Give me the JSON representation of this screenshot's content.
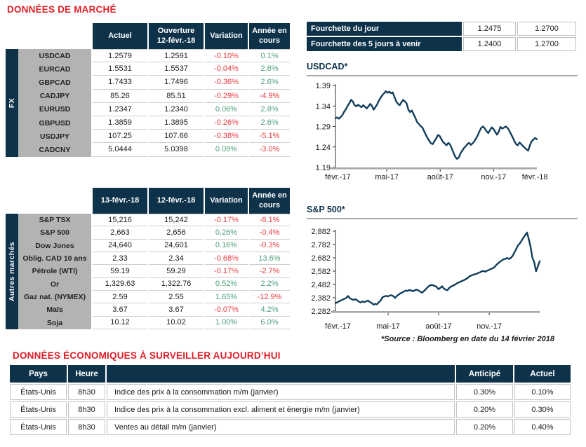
{
  "colors": {
    "navy": "#0E324A",
    "red": "#DE1F26",
    "neg": "#E8393E",
    "pos": "#4E9F78",
    "line": "#123E5C",
    "label_bg": "#B3B3B3"
  },
  "market": {
    "title": "DONNÉES DE MARCHÉ",
    "fx": {
      "group_label": "FX",
      "headers": [
        "Actuel",
        "Ouverture\n12-févr.-18",
        "Variation",
        "Année en\ncours"
      ],
      "rows": [
        [
          "USDCAD",
          "1.2579",
          "1.2591",
          "-0.10%",
          "0.1%"
        ],
        [
          "EURCAD",
          "1.5531",
          "1.5537",
          "-0.04%",
          "2.8%"
        ],
        [
          "GBPCAD",
          "1.7433",
          "1.7496",
          "-0.36%",
          "2.6%"
        ],
        [
          "CADJPY",
          "85.26",
          "85.51",
          "-0.29%",
          "-4.9%"
        ],
        [
          "EURUSD",
          "1.2347",
          "1.2340",
          "0.06%",
          "2.8%"
        ],
        [
          "GBPUSD",
          "1.3859",
          "1.3895",
          "-0.26%",
          "2.6%"
        ],
        [
          "USDJPY",
          "107.25",
          "107.66",
          "-0.38%",
          "-5.1%"
        ],
        [
          "CADCNY",
          "5.0444",
          "5.0398",
          "0.09%",
          "-3.0%"
        ]
      ]
    },
    "autres": {
      "group_label": "Autres marchés",
      "headers": [
        "13-févr.-18",
        "12-févr.-18",
        "Variation",
        "Année en\ncours"
      ],
      "rows": [
        [
          "S&P TSX",
          "15,216",
          "15,242",
          "-0.17%",
          "-6.1%"
        ],
        [
          "S&P 500",
          "2,663",
          "2,656",
          "0.26%",
          "-0.4%"
        ],
        [
          "Dow Jones",
          "24,640",
          "24,601",
          "0.16%",
          "-0.3%"
        ],
        [
          "Oblig. CAD 10 ans",
          "2.33",
          "2.34",
          "-0.68%",
          "13.6%"
        ],
        [
          "Pétrole (WTI)",
          "59.19",
          "59.29",
          "-0.17%",
          "-2.7%"
        ],
        [
          "Or",
          "1,329.63",
          "1,322.76",
          "0.52%",
          "2.2%"
        ],
        [
          "Gaz nat. (NYMEX)",
          "2.59",
          "2.55",
          "1.65%",
          "-12.9%"
        ],
        [
          "Maïs",
          "3.67",
          "3.67",
          "-0.07%",
          "4.2%"
        ],
        [
          "Soja",
          "10.12",
          "10.02",
          "1.00%",
          "6.0%"
        ]
      ]
    }
  },
  "fourchette": {
    "rows": [
      [
        "Fourchette du jour",
        "1.2475",
        "1.2700"
      ],
      [
        "Fourchette des 5 jours à venir",
        "1.2400",
        "1.2700"
      ]
    ]
  },
  "chart_data": [
    {
      "type": "line",
      "title": "USDCAD*",
      "xlabel": "",
      "ylabel": "",
      "ylim": [
        1.19,
        1.39
      ],
      "ytick_values": [
        1.39,
        1.34,
        1.29,
        1.24,
        1.19
      ],
      "ytick_labels": [
        "1.39",
        "1.34",
        "1.29",
        "1.24",
        "1.19"
      ],
      "xticks": [
        {
          "f": 0.012,
          "label": "févr.-17"
        },
        {
          "f": 0.255,
          "label": "mai-17"
        },
        {
          "f": 0.52,
          "label": "août-17"
        },
        {
          "f": 0.785,
          "label": "nov.-17"
        },
        {
          "f": 0.99,
          "label": "févr.-18"
        }
      ],
      "x_range": "févr.-17 à févr.-18",
      "values": [
        1.31,
        1.312,
        1.309,
        1.313,
        1.318,
        1.326,
        1.332,
        1.34,
        1.347,
        1.355,
        1.351,
        1.342,
        1.339,
        1.343,
        1.34,
        1.337,
        1.342,
        1.338,
        1.334,
        1.339,
        1.345,
        1.34,
        1.331,
        1.337,
        1.344,
        1.353,
        1.36,
        1.366,
        1.371,
        1.376,
        1.372,
        1.375,
        1.371,
        1.373,
        1.362,
        1.351,
        1.345,
        1.342,
        1.349,
        1.355,
        1.351,
        1.346,
        1.331,
        1.325,
        1.329,
        1.32,
        1.311,
        1.301,
        1.296,
        1.291,
        1.288,
        1.279,
        1.27,
        1.262,
        1.255,
        1.249,
        1.247,
        1.254,
        1.261,
        1.269,
        1.267,
        1.259,
        1.252,
        1.248,
        1.244,
        1.25,
        1.246,
        1.236,
        1.226,
        1.216,
        1.211,
        1.214,
        1.224,
        1.231,
        1.237,
        1.242,
        1.247,
        1.25,
        1.245,
        1.249,
        1.254,
        1.261,
        1.269,
        1.279,
        1.287,
        1.29,
        1.285,
        1.278,
        1.274,
        1.281,
        1.288,
        1.284,
        1.277,
        1.27,
        1.277,
        1.289,
        1.285,
        1.287,
        1.29,
        1.287,
        1.281,
        1.272,
        1.264,
        1.255,
        1.247,
        1.244,
        1.251,
        1.247,
        1.242,
        1.238,
        1.234,
        1.231,
        1.244,
        1.254,
        1.258,
        1.262,
        1.259
      ]
    },
    {
      "type": "line",
      "title": "S&P 500*",
      "xlabel": "",
      "ylabel": "",
      "ylim": [
        2282,
        2882
      ],
      "ytick_values": [
        2882,
        2782,
        2682,
        2582,
        2482,
        2382,
        2282
      ],
      "ytick_labels": [
        "2,882",
        "2,782",
        "2,682",
        "2,582",
        "2,482",
        "2,382",
        "2,282"
      ],
      "xticks": [
        {
          "f": 0.012,
          "label": "févr.-17"
        },
        {
          "f": 0.258,
          "label": "mai-17"
        },
        {
          "f": 0.505,
          "label": "août-17"
        },
        {
          "f": 0.753,
          "label": "nov.-17"
        }
      ],
      "x_range": "févr.-17 à févr.-18",
      "values": [
        2342,
        2348,
        2355,
        2362,
        2368,
        2375,
        2381,
        2395,
        2378,
        2371,
        2366,
        2371,
        2363,
        2352,
        2346,
        2355,
        2349,
        2356,
        2361,
        2351,
        2343,
        2331,
        2336,
        2333,
        2349,
        2361,
        2386,
        2391,
        2396,
        2392,
        2399,
        2401,
        2394,
        2381,
        2396,
        2406,
        2416,
        2421,
        2431,
        2436,
        2433,
        2441,
        2436,
        2431,
        2439,
        2443,
        2436,
        2426,
        2421,
        2433,
        2446,
        2461,
        2473,
        2478,
        2475,
        2471,
        2463,
        2446,
        2456,
        2469,
        2451,
        2443,
        2439,
        2456,
        2466,
        2473,
        2479,
        2489,
        2496,
        2501,
        2509,
        2513,
        2521,
        2529,
        2541,
        2549,
        2553,
        2559,
        2561,
        2569,
        2573,
        2581,
        2583,
        2578,
        2586,
        2591,
        2599,
        2603,
        2613,
        2629,
        2641,
        2652,
        2662,
        2671,
        2674,
        2681,
        2673,
        2681,
        2696,
        2721,
        2748,
        2776,
        2791,
        2811,
        2833,
        2853,
        2872,
        2822,
        2762,
        2681,
        2648,
        2581,
        2619,
        2656
      ]
    }
  ],
  "source_note": "*Source : Bloomberg en date du  14 février 2018",
  "economic": {
    "title": "DONNÉES ÉCONOMIQUES À SURVEILLER AUJOURD’HUI",
    "headers": [
      "Pays",
      "Heure",
      "",
      "Anticipé",
      "Actuel"
    ],
    "rows": [
      [
        "États-Unis",
        "8h30",
        "Indice des prix à la consommation m/m (janvier)",
        "0.30%",
        "0.10%"
      ],
      [
        "États-Unis",
        "8h30",
        "Indice des prix à la consommation excl. aliment et énergie m/m (janvier)",
        "0.20%",
        "0.30%"
      ],
      [
        "États-Unis",
        "8h30",
        "Ventes au détail m/m (janvier)",
        "0.20%",
        "0.40%"
      ]
    ]
  }
}
